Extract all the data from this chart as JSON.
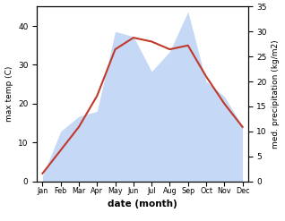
{
  "months": [
    "Jan",
    "Feb",
    "Mar",
    "Apr",
    "May",
    "Jun",
    "Jul",
    "Aug",
    "Sep",
    "Oct",
    "Nov",
    "Dec"
  ],
  "month_positions": [
    0,
    1,
    2,
    3,
    4,
    5,
    6,
    7,
    8,
    9,
    10,
    11
  ],
  "max_temp": [
    2,
    8,
    14,
    22,
    34,
    37,
    36,
    34,
    35,
    27,
    20,
    14
  ],
  "precipitation": [
    1,
    10,
    13,
    14,
    30,
    29,
    22,
    26,
    34,
    20,
    17,
    11
  ],
  "temp_color": "#c0392b",
  "precip_fill_color": "#c5d8f5",
  "xlabel": "date (month)",
  "ylabel_left": "max temp (C)",
  "ylabel_right": "med. precipitation (kg/m2)",
  "ylim_left": [
    0,
    45
  ],
  "ylim_right": [
    0,
    35
  ],
  "yticks_left": [
    0,
    10,
    20,
    30,
    40
  ],
  "yticks_right": [
    0,
    5,
    10,
    15,
    20,
    25,
    30,
    35
  ],
  "figsize": [
    3.18,
    2.47
  ],
  "dpi": 100
}
